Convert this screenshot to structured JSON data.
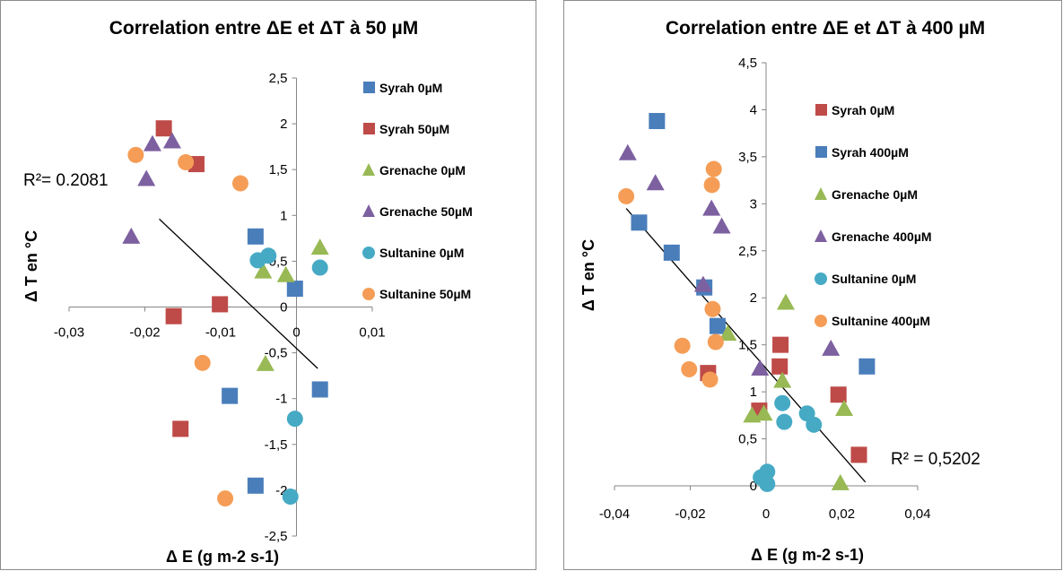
{
  "chart_data": [
    {
      "type": "scatter",
      "title": "Correlation entre ΔE et ΔT à 50 µM",
      "xlabel": "Δ E (g m-2 s-1)",
      "ylabel": "Δ T en °C",
      "xlim": [
        -0.03,
        0.01
      ],
      "ylim": [
        -2.5,
        2.5
      ],
      "x_ticks": [
        "-0,03",
        "-0,02",
        "-0,01",
        "0",
        "0,01"
      ],
      "y_ticks": [
        "-2,5",
        "-2",
        "-1,5",
        "-1",
        "-0,5",
        "0",
        "0,5",
        "1",
        "1,5",
        "2",
        "2,5"
      ],
      "legend_position": "right",
      "series": [
        {
          "name": "Syrah 0µM",
          "color": "#4a7ebb",
          "marker": "square",
          "points": [
            [
              -0.0054,
              0.77
            ],
            [
              -0.0002,
              0.2
            ],
            [
              -0.0088,
              -0.97
            ],
            [
              0.0031,
              -0.9
            ],
            [
              -0.0054,
              -1.95
            ]
          ]
        },
        {
          "name": "Syrah 50µM",
          "color": "#be4b48",
          "marker": "square",
          "points": [
            [
              -0.0175,
              1.95
            ],
            [
              -0.0132,
              1.56
            ],
            [
              -0.0101,
              0.03
            ],
            [
              -0.0162,
              -0.1
            ],
            [
              -0.0153,
              -1.33
            ]
          ]
        },
        {
          "name": "Grenache 0µM",
          "color": "#98b954",
          "marker": "triangle",
          "points": [
            [
              -0.0044,
              0.38
            ],
            [
              -0.0014,
              0.34
            ],
            [
              0.0031,
              0.64
            ],
            [
              -0.0041,
              -0.63
            ]
          ]
        },
        {
          "name": "Grenache 50µM",
          "color": "#7d60a0",
          "marker": "triangle",
          "points": [
            [
              -0.0164,
              1.8
            ],
            [
              -0.019,
              1.77
            ],
            [
              -0.0198,
              1.39
            ],
            [
              -0.0218,
              0.76
            ]
          ]
        },
        {
          "name": "Sultanine 0µM",
          "color": "#46aac5",
          "marker": "circle",
          "points": [
            [
              -0.0051,
              0.51
            ],
            [
              -0.0037,
              0.56
            ],
            [
              0.0031,
              0.43
            ],
            [
              -0.0002,
              -1.22
            ],
            [
              -0.0008,
              -2.07
            ]
          ]
        },
        {
          "name": "Sultanine 50µM",
          "color": "#f59d56",
          "marker": "circle",
          "points": [
            [
              -0.0212,
              1.66
            ],
            [
              -0.0146,
              1.58
            ],
            [
              -0.0074,
              1.35
            ],
            [
              -0.0124,
              -0.61
            ],
            [
              -0.0094,
              -2.09
            ]
          ]
        }
      ],
      "trendline": {
        "x": [
          -0.0181,
          0.0028
        ],
        "y": [
          0.96,
          -0.67
        ]
      },
      "r2_label": "R²= 0.2081"
    },
    {
      "type": "scatter",
      "title": "Correlation entre ΔE et ΔT à 400 µM",
      "xlabel": "Δ E (g m-2 s-1)",
      "ylabel": "Δ T en °C",
      "xlim": [
        -0.04,
        0.04
      ],
      "ylim": [
        0,
        4.5
      ],
      "x_ticks": [
        "-0,04",
        "-0,02",
        "0",
        "0,02",
        "0,04"
      ],
      "y_ticks": [
        "0",
        "0,5",
        "1",
        "1,5",
        "2",
        "2,5",
        "3",
        "3,5",
        "4",
        "4,5"
      ],
      "legend_position": "right",
      "series": [
        {
          "name": "Syrah 0µM",
          "color": "#be4b48",
          "marker": "square",
          "points": [
            [
              0.0038,
              1.5
            ],
            [
              0.0036,
              1.27
            ],
            [
              0.0191,
              0.97
            ],
            [
              0.0245,
              0.33
            ],
            [
              -0.0153,
              1.2
            ],
            [
              -0.0018,
              0.8
            ]
          ]
        },
        {
          "name": "Syrah 400µM",
          "color": "#4a7ebb",
          "marker": "square",
          "points": [
            [
              -0.0288,
              3.88
            ],
            [
              -0.0335,
              2.8
            ],
            [
              -0.0249,
              2.48
            ],
            [
              -0.0163,
              2.11
            ],
            [
              -0.0128,
              1.7
            ],
            [
              0.0266,
              1.27
            ]
          ]
        },
        {
          "name": "Grenache 0µM",
          "color": "#98b954",
          "marker": "triangle",
          "points": [
            [
              0.0052,
              1.94
            ],
            [
              -0.0101,
              1.61
            ],
            [
              0.0043,
              1.11
            ],
            [
              -0.0006,
              0.76
            ],
            [
              0.0206,
              0.81
            ],
            [
              0.0196,
              0.02
            ],
            [
              -0.0037,
              0.74
            ]
          ]
        },
        {
          "name": "Grenache 400µM",
          "color": "#7d60a0",
          "marker": "triangle",
          "points": [
            [
              -0.0365,
              3.53
            ],
            [
              -0.0292,
              3.21
            ],
            [
              -0.0144,
              2.94
            ],
            [
              -0.0117,
              2.75
            ],
            [
              -0.0166,
              2.13
            ],
            [
              -0.0016,
              1.24
            ],
            [
              0.0171,
              1.45
            ]
          ]
        },
        {
          "name": "Sultanine 0µM",
          "color": "#46aac5",
          "marker": "circle",
          "points": [
            [
              0.0043,
              0.88
            ],
            [
              0.0048,
              0.68
            ],
            [
              0.0108,
              0.77
            ],
            [
              0.0126,
              0.65
            ],
            [
              -0.0014,
              0.09
            ],
            [
              0.0003,
              0.15
            ],
            [
              0.0003,
              0.02
            ]
          ]
        },
        {
          "name": "Sultanine 400µM",
          "color": "#f59d56",
          "marker": "circle",
          "points": [
            [
              -0.0369,
              3.08
            ],
            [
              -0.0138,
              3.37
            ],
            [
              -0.0143,
              3.2
            ],
            [
              -0.0141,
              1.88
            ],
            [
              -0.0133,
              1.53
            ],
            [
              -0.0221,
              1.49
            ],
            [
              -0.0203,
              1.24
            ],
            [
              -0.0148,
              1.13
            ]
          ]
        }
      ],
      "trendline": {
        "x": [
          -0.0369,
          0.0262
        ],
        "y": [
          2.95,
          0.04
        ]
      },
      "r2_label": "R² = 0,5202"
    }
  ]
}
